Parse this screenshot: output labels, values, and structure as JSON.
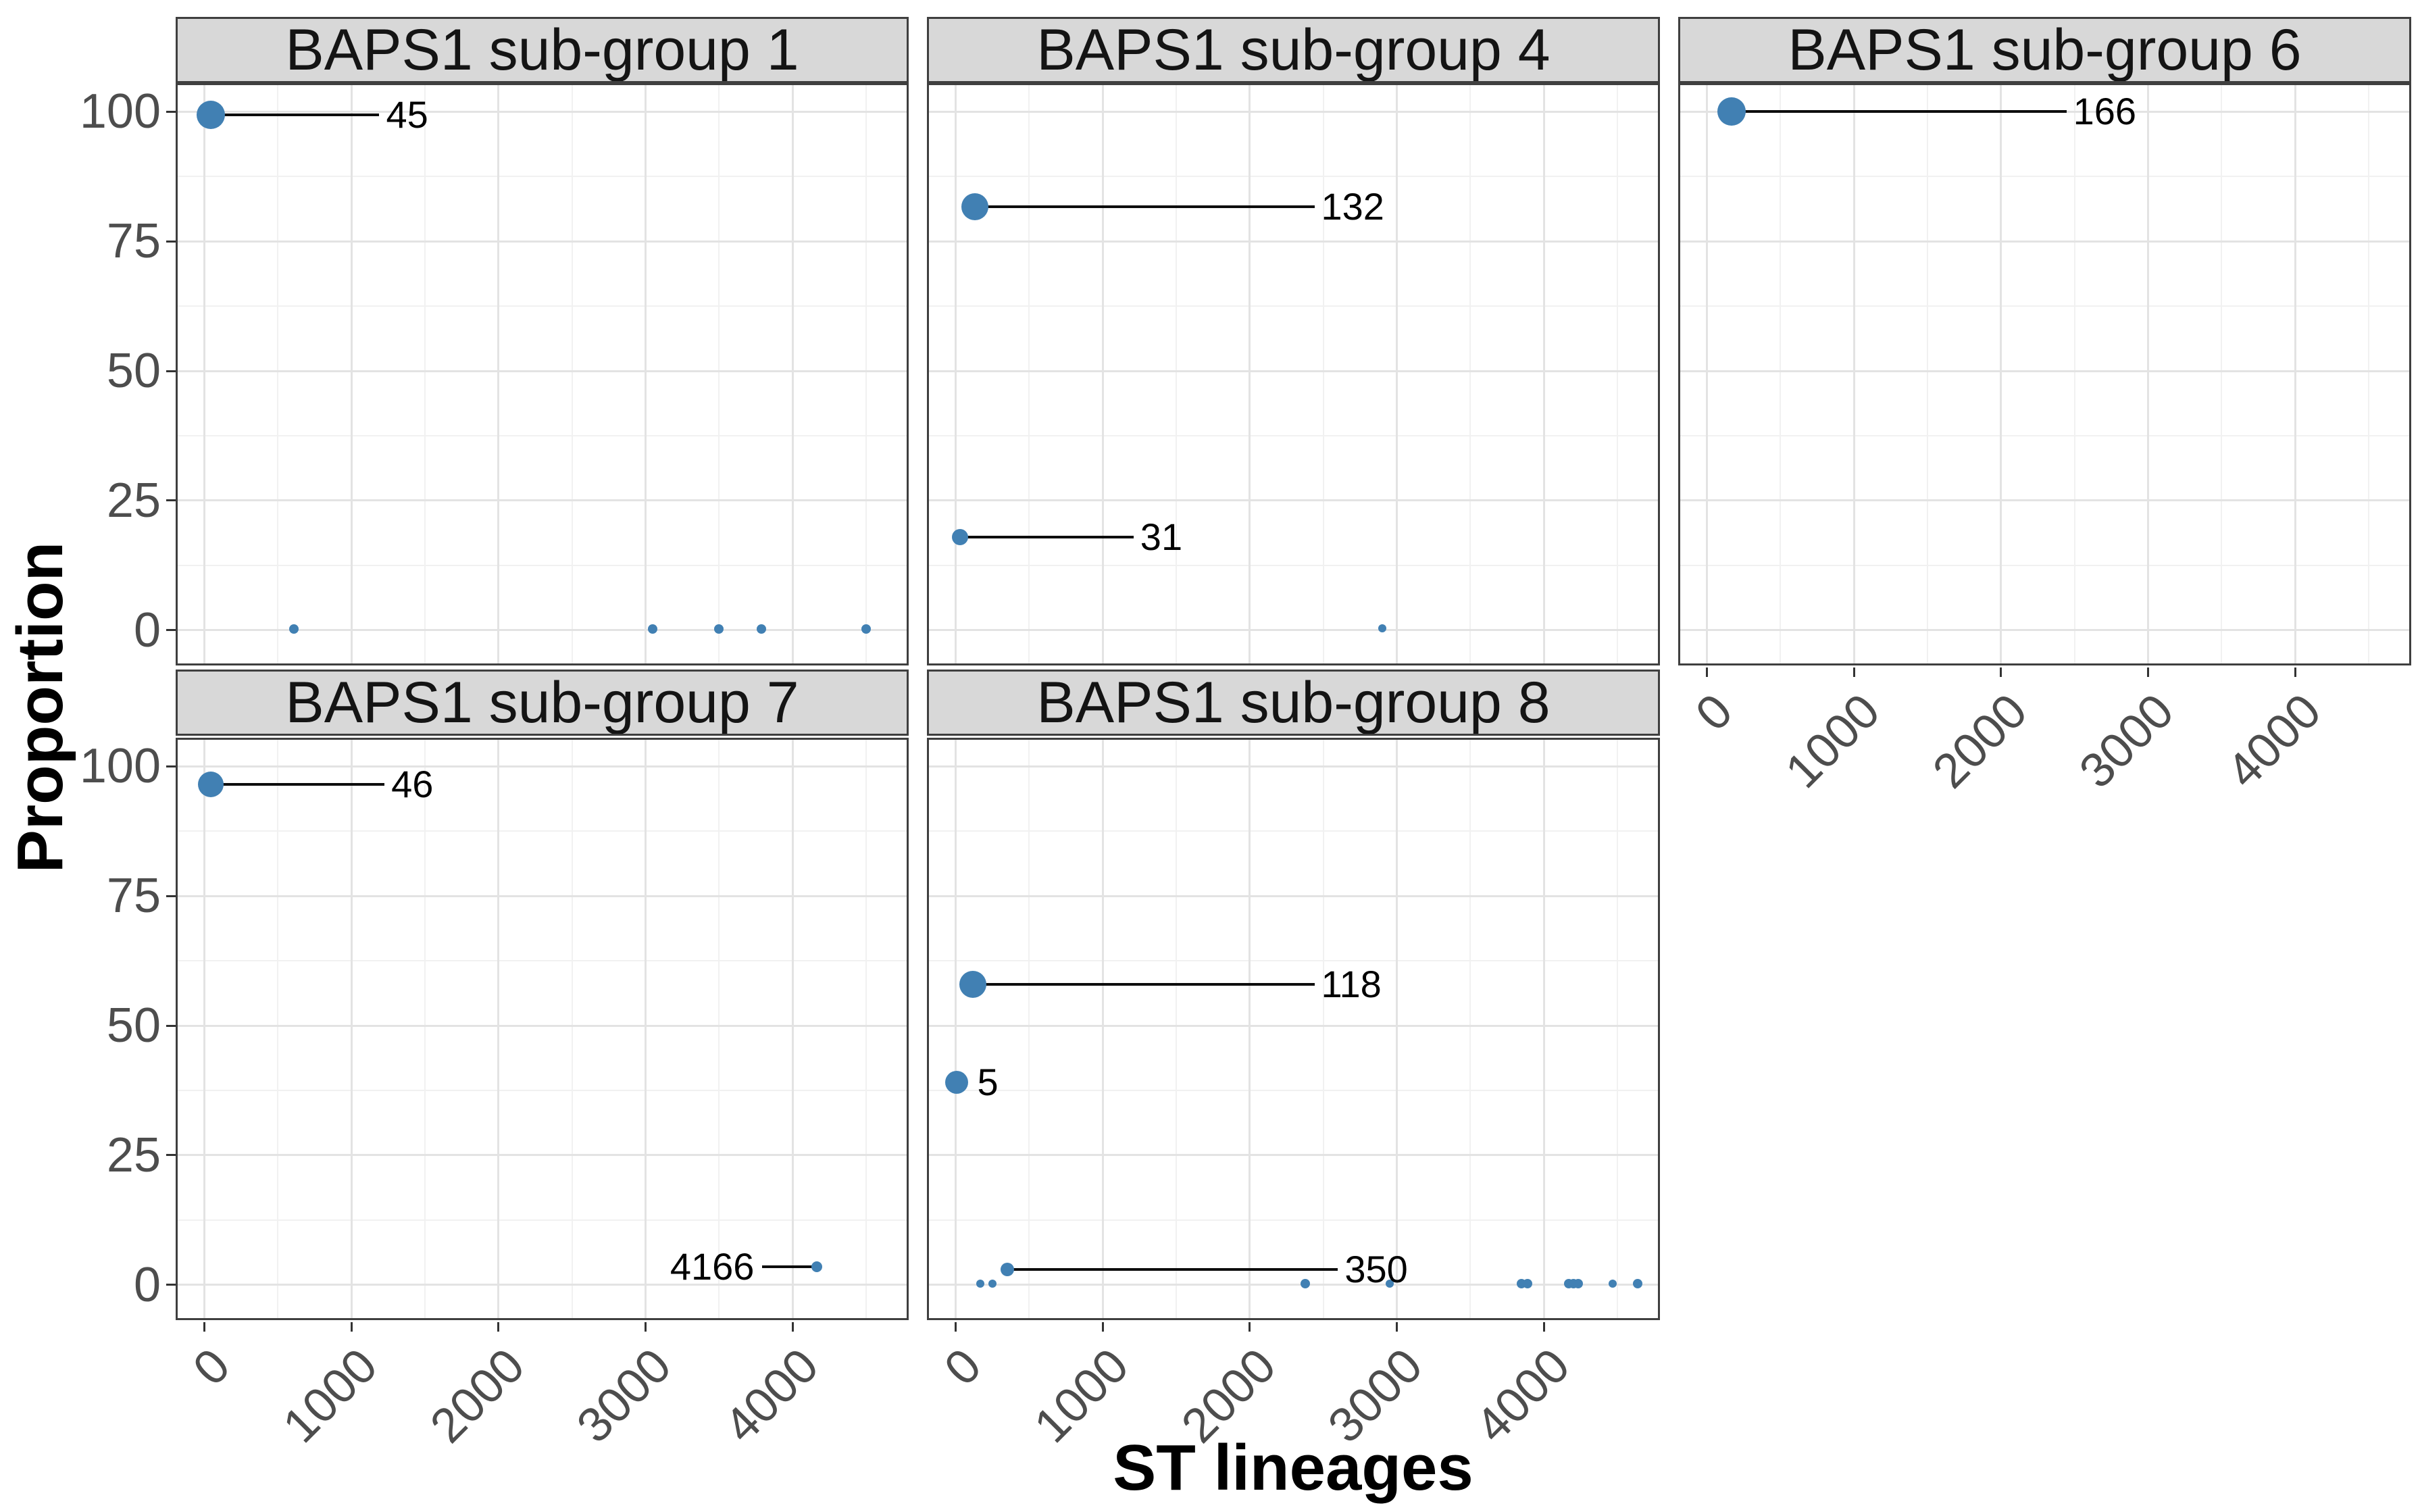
{
  "axes": {
    "x_title": "ST lineages",
    "y_title": "Proportion",
    "y_tick_labels": [
      "100",
      "75",
      "50",
      "25",
      "0"
    ],
    "x_tick_labels": [
      "0",
      "1000",
      "2000",
      "3000",
      "4000"
    ]
  },
  "colors": {
    "point_fill": "#4180b3",
    "strip_background": "#d8d8d8",
    "panel_border": "#3f3f3f",
    "grid_major": "#e3e3e3",
    "grid_minor": "#f1f1f1",
    "tick_text": "#4d4d4d",
    "leader_line": "#0d0d0d"
  },
  "chart_data": {
    "type": "scatter",
    "faceting": "BAPS1 sub-groups (facet_wrap, 3 columns)",
    "xlabel": "ST lineages",
    "ylabel": "Proportion",
    "xlim": [
      -195,
      4790
    ],
    "ylim": [
      -6.8,
      105.5
    ],
    "x_ticks": [
      0,
      1000,
      2000,
      3000,
      4000
    ],
    "y_ticks": [
      100,
      75,
      50,
      25,
      0
    ],
    "grid": "major and minor, light gray on white",
    "legend": "none; point size reflects lineage frequency",
    "panels": [
      {
        "title": "BAPS1 sub-group 1",
        "col": 0,
        "row": 0,
        "x_axis": false,
        "labeled_points": [
          {
            "label": "45",
            "x": 45,
            "y": 99.4,
            "r": 21,
            "label_x": 1190,
            "side": "right"
          }
        ],
        "points": [
          {
            "x": 610,
            "y": 0.3,
            "r": 7
          },
          {
            "x": 3050,
            "y": 0.3,
            "r": 7
          },
          {
            "x": 3500,
            "y": 0.3,
            "r": 7
          },
          {
            "x": 3790,
            "y": 0.3,
            "r": 7
          },
          {
            "x": 4500,
            "y": 0.3,
            "r": 7
          }
        ]
      },
      {
        "title": "BAPS1 sub-group 4",
        "col": 1,
        "row": 0,
        "x_axis": false,
        "labeled_points": [
          {
            "label": "132",
            "x": 132,
            "y": 81.6,
            "r": 20,
            "label_x": 2440,
            "side": "right"
          },
          {
            "label": "31",
            "x": 31,
            "y": 18,
            "r": 12,
            "label_x": 1210,
            "side": "right"
          }
        ],
        "points": [
          {
            "x": 2900,
            "y": 0.4,
            "r": 6
          }
        ]
      },
      {
        "title": "BAPS1 sub-group 6",
        "col": 2,
        "row": 0,
        "x_axis": true,
        "labeled_points": [
          {
            "label": "166",
            "x": 166,
            "y": 100,
            "r": 21,
            "label_x": 2445,
            "side": "right"
          }
        ],
        "points": []
      },
      {
        "title": "BAPS1 sub-group 7",
        "col": 0,
        "row": 1,
        "x_axis": true,
        "labeled_points": [
          {
            "label": "46",
            "x": 46,
            "y": 96.5,
            "r": 19,
            "label_x": 1225,
            "side": "right"
          },
          {
            "label": "4166",
            "x": 4166,
            "y": 3.5,
            "r": 8,
            "label_x": 3740,
            "side": "left"
          }
        ],
        "points": []
      },
      {
        "title": "BAPS1 sub-group 8",
        "col": 1,
        "row": 1,
        "x_axis": true,
        "labeled_points": [
          {
            "label": "118",
            "x": 118,
            "y": 58,
            "r": 20,
            "label_x": 2440,
            "side": "right"
          },
          {
            "label": "5",
            "x": 5,
            "y": 39,
            "r": 17,
            "label_x": null,
            "side": "right"
          },
          {
            "label": "350",
            "x": 350,
            "y": 3,
            "r": 10,
            "label_x": 2600,
            "side": "right"
          }
        ],
        "points": [
          {
            "x": 170,
            "y": 0.3,
            "r": 6
          },
          {
            "x": 250,
            "y": 0.3,
            "r": 6
          },
          {
            "x": 2380,
            "y": 0.3,
            "r": 7
          },
          {
            "x": 2950,
            "y": 0.3,
            "r": 6
          },
          {
            "x": 3850,
            "y": 0.3,
            "r": 7
          },
          {
            "x": 3890,
            "y": 0.3,
            "r": 7
          },
          {
            "x": 4170,
            "y": 0.3,
            "r": 7
          },
          {
            "x": 4200,
            "y": 0.3,
            "r": 7
          },
          {
            "x": 4235,
            "y": 0.3,
            "r": 7
          },
          {
            "x": 4470,
            "y": 0.3,
            "r": 6
          },
          {
            "x": 4640,
            "y": 0.3,
            "r": 7
          }
        ]
      }
    ]
  }
}
